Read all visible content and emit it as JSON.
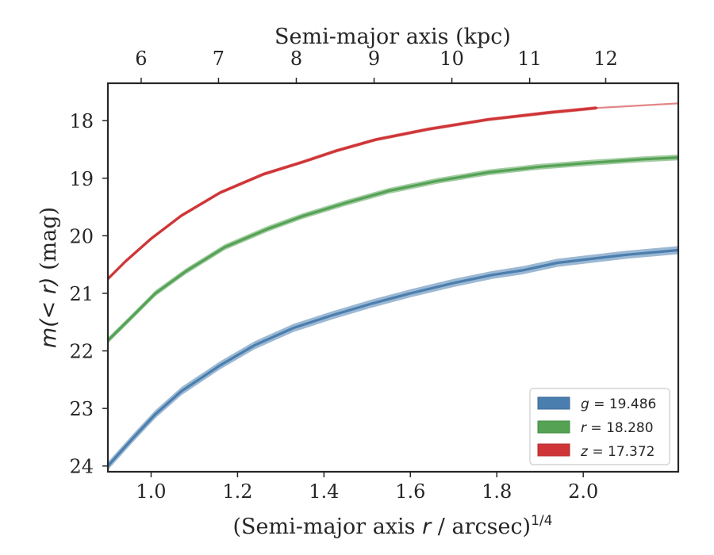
{
  "chart_data": {
    "type": "line",
    "title": "",
    "xlabel": "(Semi-major axis r / arcsec)^{1/4}",
    "xlabel_parts": {
      "main": "(Semi-major axis ",
      "var": "r",
      "rest": " / arcsec)",
      "sup": "1/4"
    },
    "ylabel": "m(< r) (mag)",
    "ylabel_parts": {
      "math": "m(< r)",
      "rest": " (mag)"
    },
    "top_xlabel": "Semi-major axis (kpc)",
    "xlim": [
      0.9,
      2.22
    ],
    "ylim": [
      24.1,
      17.35
    ],
    "y_inverted": true,
    "xticks": [
      1.0,
      1.2,
      1.4,
      1.6,
      1.8,
      2.0
    ],
    "xtick_labels": [
      "1.0",
      "1.2",
      "1.4",
      "1.6",
      "1.8",
      "2.0"
    ],
    "yticks": [
      18,
      19,
      20,
      21,
      22,
      23,
      24
    ],
    "ytick_labels": [
      "18",
      "19",
      "20",
      "21",
      "22",
      "23",
      "24"
    ],
    "top_ticks_kpc": [
      6,
      7,
      8,
      9,
      10,
      11,
      12
    ],
    "top_tick_labels": [
      "6",
      "7",
      "8",
      "9",
      "10",
      "11",
      "12"
    ],
    "top_tick_positions_x": [
      0.977,
      1.156,
      1.336,
      1.516,
      1.696,
      1.876,
      2.052
    ],
    "grid": false,
    "legend_position": "lower-right",
    "series": [
      {
        "name": "g = 19.486",
        "band": "g",
        "value": "19.486",
        "color": "#4a7eae",
        "x": [
          0.9,
          0.93,
          0.96,
          1.01,
          1.07,
          1.16,
          1.24,
          1.33,
          1.42,
          1.51,
          1.6,
          1.7,
          1.79,
          1.86,
          1.94,
          2.02,
          2.1,
          2.22
        ],
        "y": [
          24.0,
          23.75,
          23.5,
          23.1,
          22.7,
          22.25,
          21.9,
          21.6,
          21.38,
          21.18,
          21.0,
          20.82,
          20.68,
          20.6,
          20.47,
          20.4,
          20.33,
          20.25
        ],
        "band_halfwidth": 0.07
      },
      {
        "name": "r = 18.280",
        "band": "r",
        "value": "18.280",
        "color": "#55a255",
        "x": [
          0.9,
          0.95,
          1.01,
          1.08,
          1.17,
          1.27,
          1.35,
          1.45,
          1.55,
          1.66,
          1.78,
          1.9,
          2.02,
          2.14,
          2.22
        ],
        "y": [
          21.82,
          21.45,
          21.0,
          20.62,
          20.2,
          19.88,
          19.66,
          19.43,
          19.22,
          19.05,
          18.9,
          18.8,
          18.73,
          18.67,
          18.64
        ],
        "band_halfwidth": 0.05
      },
      {
        "name": "z = 17.372",
        "band": "z",
        "value": "17.372",
        "color": "#cf3537",
        "x": [
          0.9,
          0.94,
          1.0,
          1.07,
          1.16,
          1.26,
          1.35,
          1.43,
          1.52,
          1.64,
          1.78,
          1.92,
          2.03
        ],
        "y": [
          20.75,
          20.45,
          20.05,
          19.65,
          19.25,
          18.93,
          18.72,
          18.52,
          18.33,
          18.15,
          17.98,
          17.86,
          17.78
        ],
        "band_halfwidth": 0.03,
        "extension_x": [
          2.03,
          2.22
        ],
        "extension_y": [
          17.78,
          17.7
        ]
      }
    ]
  }
}
